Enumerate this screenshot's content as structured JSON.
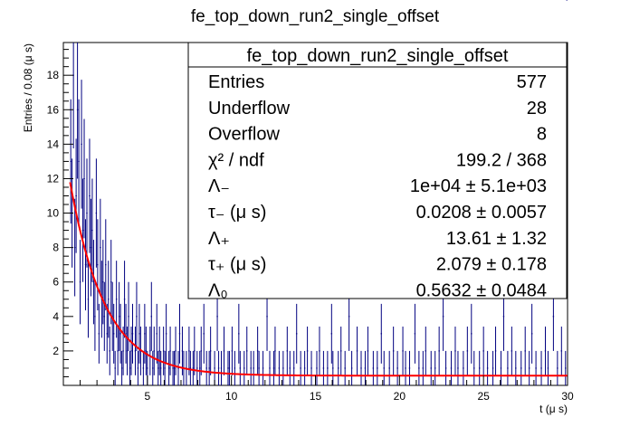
{
  "chart_data": {
    "type": "histogram",
    "title": "fe_top_down_run2_single_offset",
    "xlabel": "t (μ s)",
    "ylabel": "Entries / 0.08 (μ s)",
    "xlim": [
      0.0,
      30.0
    ],
    "ylim": [
      0,
      19.9
    ],
    "x_ticks": [
      5,
      10,
      15,
      20,
      25,
      30
    ],
    "y_ticks": [
      2,
      4,
      6,
      8,
      10,
      12,
      14,
      16,
      18
    ],
    "bin_width": 0.08,
    "histogram_color": "#000080",
    "fit_color": "#ff0000",
    "stats_box": {
      "title": "fe_top_down_run2_single_offset",
      "rows": [
        {
          "label": "Entries",
          "value": "577"
        },
        {
          "label": "Underflow",
          "value": "28"
        },
        {
          "label": "Overflow",
          "value": "8"
        },
        {
          "label": "χ² / ndf",
          "value": "199.2 / 368"
        },
        {
          "label": "Λ₋",
          "value": "1e+04 ± 5.1e+03"
        },
        {
          "label": "τ₋ (μ s)",
          "value": "0.0208 ± 0.0057"
        },
        {
          "label": "Λ₊",
          "value": "13.61 ± 1.32"
        },
        {
          "label": "τ₊ (μ s)",
          "value": "2.079 ± 0.178"
        },
        {
          "label": "Λ₀",
          "value": "0.5632 ± 0.0484"
        }
      ]
    },
    "fit": {
      "function": "Lminus*exp(-t/tau_minus) + Lplus*exp(-t/tau_plus) + L0",
      "Lminus": 10000,
      "tau_minus": 0.0208,
      "Lplus": 13.61,
      "tau_plus": 2.079,
      "L0": 0.5632,
      "x_range": [
        0.4,
        30.0
      ]
    },
    "series": [
      {
        "x": [
          0.44,
          0.52,
          0.6,
          0.68,
          0.76,
          0.84,
          0.92,
          1.0,
          1.08,
          1.16,
          1.24,
          1.32,
          1.4,
          1.48,
          1.56,
          1.64,
          1.72,
          1.8,
          1.88,
          1.96,
          2.04,
          2.12,
          2.2,
          2.28,
          2.36,
          2.44,
          2.52,
          2.6,
          2.68,
          2.76,
          2.84,
          2.92,
          3.0,
          3.08,
          3.16,
          3.24,
          3.32,
          3.4,
          3.48,
          3.56,
          3.64,
          3.72,
          3.8,
          3.88,
          3.96,
          4.04,
          4.12,
          4.2,
          4.28,
          4.36,
          4.44,
          4.52,
          4.6,
          4.68,
          4.76,
          4.84,
          4.92,
          5.0,
          5.08,
          5.16,
          5.24,
          5.32,
          5.4,
          5.48,
          5.56,
          5.64,
          5.72,
          5.8,
          5.88,
          5.96,
          6.04,
          6.12,
          6.2,
          6.28,
          6.36,
          6.44,
          6.52,
          6.6,
          6.68,
          6.76,
          6.84,
          6.92,
          7.0,
          7.08,
          7.16,
          7.24,
          7.32,
          7.4,
          7.48,
          7.56,
          7.64,
          7.72,
          7.8,
          7.88,
          7.96,
          8.04,
          8.12,
          8.2,
          8.28,
          8.36,
          8.44,
          8.52,
          8.6,
          8.68,
          8.76,
          8.84,
          8.92,
          9.0,
          9.08,
          9.16,
          9.24,
          9.32,
          9.4,
          9.48,
          9.56,
          9.64,
          9.72,
          9.8,
          9.88,
          9.96,
          10.04,
          10.12,
          10.2,
          10.28,
          10.36,
          10.44,
          10.52,
          10.6,
          10.68,
          10.76,
          10.84,
          10.92,
          11.0,
          11.08,
          11.16,
          11.24,
          11.32,
          11.4,
          11.48,
          11.56,
          11.64,
          11.72,
          11.8,
          11.88,
          11.96,
          12.04,
          12.12,
          12.2,
          12.28,
          12.36,
          12.44,
          12.52,
          12.6,
          12.68,
          12.76,
          12.84,
          12.92,
          13.0,
          13.08,
          13.16,
          13.24,
          13.32,
          13.4,
          13.48,
          13.56,
          13.64,
          13.72,
          13.8,
          13.88,
          13.96,
          14.04,
          14.12,
          14.2,
          14.28,
          14.36,
          14.44,
          14.52,
          14.6,
          14.68,
          14.76,
          14.84,
          14.92,
          15.0,
          15.08,
          15.16,
          15.24,
          15.32,
          15.4,
          15.48,
          15.56,
          15.64,
          15.72,
          15.8,
          15.88,
          15.96,
          16.04,
          16.12,
          16.2,
          16.28,
          16.36,
          16.44,
          16.52,
          16.6,
          16.68,
          16.76,
          16.84,
          16.92,
          17.0,
          17.08,
          17.16,
          17.24,
          17.32,
          17.4,
          17.48,
          17.56,
          17.64,
          17.72,
          17.8,
          17.88,
          17.96,
          18.04,
          18.12,
          18.2,
          18.28,
          18.36,
          18.44,
          18.52,
          18.6,
          18.68,
          18.76,
          18.84,
          18.92,
          19.0,
          19.08,
          19.16,
          19.24,
          19.32,
          19.4,
          19.48,
          19.56,
          19.64,
          19.72,
          19.8,
          19.88,
          19.96,
          20.04,
          20.12,
          20.2,
          20.28,
          20.36,
          20.44,
          20.52,
          20.6,
          20.68,
          20.76,
          20.84,
          20.92,
          21.0,
          21.08,
          21.16,
          21.24,
          21.32,
          21.4,
          21.48,
          21.56,
          21.64,
          21.72,
          21.8,
          21.88,
          21.96,
          22.04,
          22.12,
          22.2,
          22.28,
          22.36,
          22.44,
          22.52,
          22.6,
          22.68,
          22.76,
          22.84,
          22.92,
          23.0,
          23.08,
          23.16,
          23.24,
          23.32,
          23.4,
          23.48,
          23.56,
          23.64,
          23.72,
          23.8,
          23.88,
          23.96,
          24.04,
          24.12,
          24.2,
          24.28,
          24.36,
          24.44,
          24.52,
          24.6,
          24.68,
          24.76,
          24.84,
          24.92,
          25.0,
          25.08,
          25.16,
          25.24,
          25.32,
          25.4,
          25.48,
          25.56,
          25.64,
          25.72,
          25.8,
          25.88,
          25.96,
          26.04,
          26.12,
          26.2,
          26.28,
          26.36,
          26.44,
          26.52,
          26.6,
          26.68,
          26.76,
          26.84,
          26.92,
          27.0,
          27.08,
          27.16,
          27.24,
          27.32,
          27.4,
          27.48,
          27.56,
          27.64,
          27.72,
          27.8,
          27.88,
          27.96,
          28.04,
          28.12,
          28.2,
          28.28,
          28.36,
          28.44,
          28.52,
          28.6,
          28.68,
          28.76,
          28.84,
          28.92,
          29.0,
          29.08,
          29.16,
          29.24,
          29.32,
          29.4,
          29.48,
          29.56,
          29.64,
          29.72,
          29.8,
          29.88,
          29.96
        ],
        "values": [
          13,
          10,
          18,
          8,
          11,
          16,
          13,
          6,
          14,
          9,
          12,
          7,
          10,
          5,
          11,
          8,
          9,
          6,
          4,
          10,
          7,
          3,
          8,
          5,
          6,
          4,
          7,
          3,
          5,
          2,
          6,
          4,
          3,
          1,
          5,
          2,
          4,
          3,
          1,
          2,
          5,
          3,
          2,
          4,
          1,
          2,
          3,
          0,
          2,
          4,
          1,
          3,
          2,
          0,
          1,
          3,
          2,
          1,
          0,
          2,
          4,
          1,
          2,
          0,
          3,
          1,
          2,
          1,
          0,
          2,
          1,
          3,
          0,
          1,
          2,
          0,
          1,
          1,
          2,
          0,
          1,
          3,
          0,
          2,
          1,
          0,
          1,
          0,
          2,
          1,
          0,
          1,
          2,
          0,
          1,
          0,
          1,
          2,
          0,
          3,
          0,
          1,
          0,
          1,
          2,
          0,
          0,
          1,
          0,
          4,
          1,
          0,
          1,
          0,
          2,
          0,
          0,
          1,
          1,
          0,
          2,
          0,
          1,
          0,
          0,
          3,
          1,
          0,
          0,
          1,
          0,
          2,
          0,
          0,
          1,
          0,
          1,
          0,
          0,
          2,
          1,
          0,
          0,
          1,
          0,
          0,
          4,
          0,
          1,
          0,
          0,
          1,
          2,
          0,
          0,
          1,
          0,
          0,
          1,
          0,
          0,
          2,
          0,
          1,
          0,
          0,
          1,
          0,
          3,
          0,
          0,
          1,
          0,
          0,
          1,
          0,
          2,
          0,
          0,
          1,
          0,
          0,
          0,
          1,
          0,
          2,
          0,
          0,
          1,
          0,
          0,
          1,
          0,
          0,
          3,
          1,
          0,
          0,
          0,
          1,
          0,
          2,
          0,
          0,
          1,
          0,
          0,
          4,
          0,
          1,
          0,
          0,
          0,
          2,
          0,
          0,
          1,
          0,
          0,
          1,
          0,
          2,
          0,
          0,
          0,
          1,
          0,
          0,
          1,
          0,
          0,
          3,
          0,
          1,
          0,
          0,
          0,
          1,
          0,
          0,
          2,
          0,
          0,
          1,
          0,
          0,
          0,
          2,
          0,
          1,
          0,
          0,
          1,
          0,
          0,
          0,
          3,
          0,
          0,
          1,
          0,
          0,
          1,
          0,
          2,
          0,
          0,
          0,
          1,
          0,
          0,
          1,
          0,
          0,
          2,
          0,
          0,
          4,
          0,
          1,
          0,
          0,
          0,
          1,
          0,
          0,
          2,
          0,
          1,
          0,
          0,
          0,
          1,
          0,
          0,
          2,
          0,
          0,
          3,
          0,
          1,
          0,
          0,
          0,
          1,
          0,
          0,
          2,
          0,
          0,
          1,
          0,
          0,
          0,
          1,
          0,
          2,
          0,
          0,
          0,
          1,
          0,
          4,
          0,
          0,
          1,
          0,
          0,
          2,
          0,
          0,
          1,
          0,
          0,
          0,
          1,
          0,
          0,
          2,
          0,
          0,
          1,
          0,
          3,
          0,
          0,
          1,
          0,
          0,
          0,
          1,
          0,
          0,
          2,
          0,
          1,
          0,
          0,
          0,
          4,
          0,
          0,
          1,
          0,
          0,
          2,
          0,
          0,
          1
        ]
      }
    ]
  }
}
